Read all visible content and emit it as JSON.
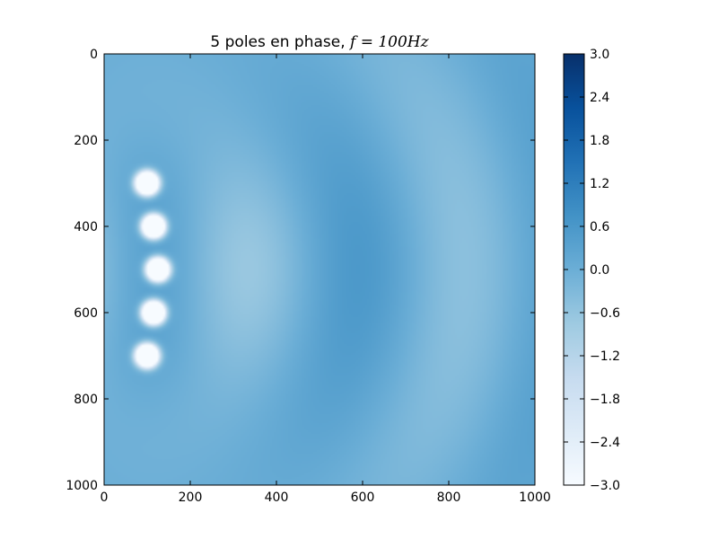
{
  "chart_data": {
    "type": "heatmap",
    "title": "5 poles en phase, ",
    "title_math": "f = 100Hz",
    "xlabel": "",
    "ylabel": "",
    "xlim": [
      0,
      1000
    ],
    "ylim": [
      1000,
      0
    ],
    "x_ticks": [
      0,
      200,
      400,
      600,
      800,
      1000
    ],
    "y_ticks": [
      0,
      200,
      400,
      600,
      800,
      1000
    ],
    "x_tick_labels": [
      "0",
      "200",
      "400",
      "600",
      "800",
      "1000"
    ],
    "y_tick_labels": [
      "0",
      "200",
      "400",
      "600",
      "800",
      "1000"
    ],
    "colormap": "Blues",
    "color_range": [
      -3.0,
      3.0
    ],
    "colorbar_ticks": [
      3.0,
      2.4,
      1.8,
      1.2,
      0.6,
      0.0,
      -0.6,
      -1.2,
      -1.8,
      -2.4,
      -3.0
    ],
    "colorbar_tick_labels": [
      "3.0",
      "2.4",
      "1.8",
      "1.2",
      "0.6",
      "0.0",
      "−0.6",
      "−1.2",
      "−1.8",
      "−2.4",
      "−3.0"
    ],
    "sources": [
      {
        "x": 100,
        "y": 300
      },
      {
        "x": 115,
        "y": 400
      },
      {
        "x": 125,
        "y": 500
      },
      {
        "x": 115,
        "y": 600
      },
      {
        "x": 100,
        "y": 700
      }
    ],
    "frequency_hz": 100,
    "grid": false
  }
}
